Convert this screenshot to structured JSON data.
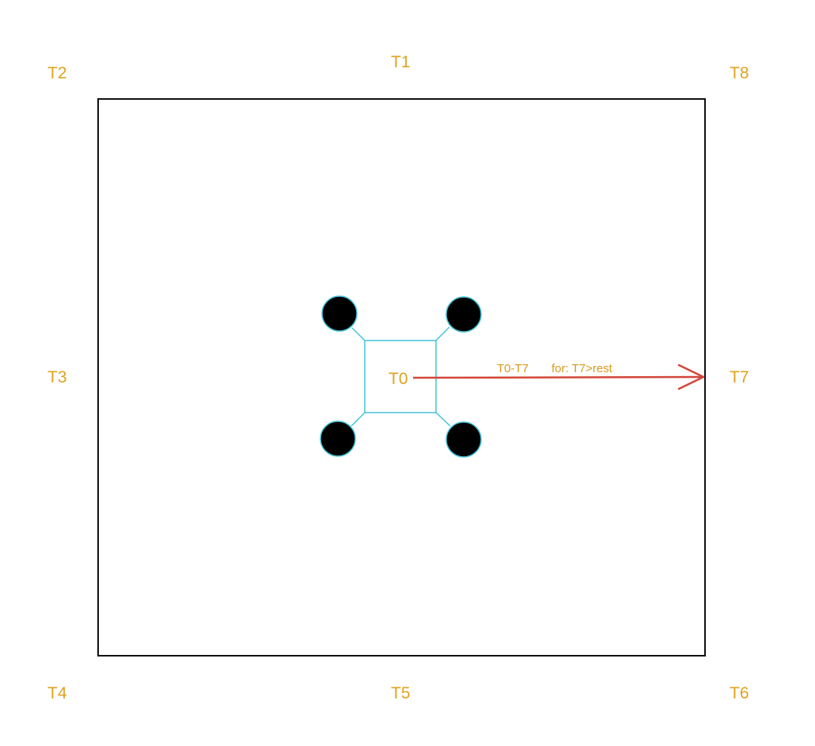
{
  "labels": {
    "t0": "T0",
    "t1": "T1",
    "t2": "T2",
    "t3": "T3",
    "t4": "T4",
    "t5": "T5",
    "t6": "T6",
    "t7": "T7",
    "t8": "T8"
  },
  "arrow": {
    "range_label": "T0-T7",
    "condition_label": "for: T7>rest"
  },
  "colors": {
    "label": "#e0a31d",
    "frame": "#111111",
    "drone_frame": "#45c3d8",
    "rotor": "#000000",
    "arrow": "#d2473a"
  }
}
